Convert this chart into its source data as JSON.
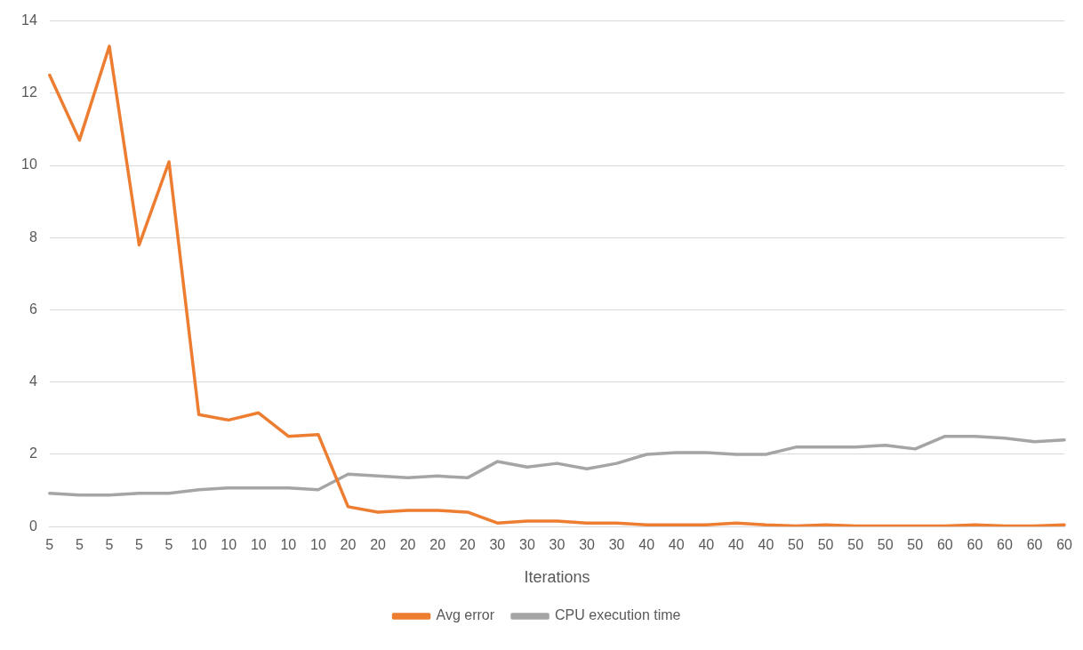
{
  "chart_data": {
    "type": "line",
    "xlabel": "Iterations",
    "categories": [
      "5",
      "5",
      "5",
      "5",
      "5",
      "10",
      "10",
      "10",
      "10",
      "10",
      "20",
      "20",
      "20",
      "20",
      "20",
      "30",
      "30",
      "30",
      "30",
      "30",
      "40",
      "40",
      "40",
      "40",
      "40",
      "50",
      "50",
      "50",
      "50",
      "50",
      "60",
      "60",
      "60",
      "60",
      "60"
    ],
    "series": [
      {
        "name": "Avg error",
        "color": "#ed7d31",
        "values": [
          12.5,
          10.7,
          13.3,
          7.8,
          10.1,
          3.1,
          2.95,
          3.15,
          2.5,
          2.55,
          0.55,
          0.4,
          0.45,
          0.45,
          0.4,
          0.1,
          0.15,
          0.15,
          0.1,
          0.1,
          0.05,
          0.05,
          0.05,
          0.1,
          0.05,
          0.02,
          0.05,
          0.02,
          0.02,
          0.02,
          0.02,
          0.05,
          0.02,
          0.02,
          0.05
        ]
      },
      {
        "name": "CPU execution time",
        "color": "#a5a5a5",
        "values": [
          0.92,
          0.87,
          0.87,
          0.92,
          0.92,
          1.02,
          1.07,
          1.07,
          1.07,
          1.02,
          1.45,
          1.4,
          1.35,
          1.4,
          1.35,
          1.8,
          1.65,
          1.75,
          1.6,
          1.75,
          2.0,
          2.05,
          2.05,
          2.0,
          2.0,
          2.2,
          2.2,
          2.2,
          2.25,
          2.15,
          2.5,
          2.5,
          2.45,
          2.35,
          2.4
        ]
      }
    ],
    "ylim": [
      0,
      14
    ],
    "yticks": [
      0,
      2,
      4,
      6,
      8,
      10,
      12,
      14
    ],
    "grid": "y",
    "legend": "bottom",
    "marker": "none",
    "line_style": "solid"
  }
}
